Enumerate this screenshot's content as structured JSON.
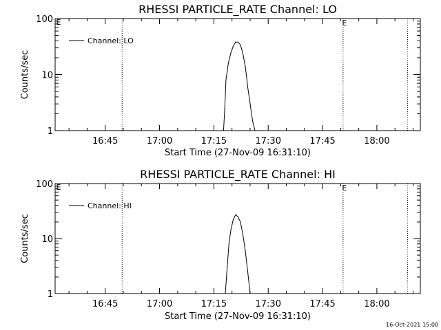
{
  "chart_data": [
    {
      "type": "line",
      "title": "RHESSI PARTICLE_RATE Channel: LO",
      "xlabel": "Start Time (27-Nov-09 16:31:10)",
      "ylabel": "Counts/sec",
      "yscale": "log",
      "ylim": [
        1,
        100
      ],
      "xlim": [
        "16:31:10",
        "18:12:00"
      ],
      "x_ticks": [
        "16:45",
        "17:00",
        "17:15",
        "17:30",
        "17:45",
        "18:00"
      ],
      "y_ticks": [
        "1",
        "10",
        "100"
      ],
      "legend": {
        "position": "top-left",
        "label": "Channel: LO"
      },
      "vlines": [
        {
          "x": "16:49:40",
          "label": ""
        },
        {
          "x": "17:50:40",
          "label": "E"
        },
        {
          "x": "18:08:30",
          "label": ""
        }
      ],
      "corner_mark": "E",
      "series": [
        {
          "name": "Channel: LO",
          "x": [
            "17:17:40",
            "17:18:00",
            "17:18:20",
            "17:19:00",
            "17:19:40",
            "17:20:20",
            "17:21:00",
            "17:21:40",
            "17:22:20",
            "17:23:00",
            "17:23:40",
            "17:24:20",
            "17:25:00",
            "17:25:40",
            "17:26:20"
          ],
          "y": [
            1,
            2.5,
            8,
            16,
            24,
            32,
            38,
            38,
            34,
            24,
            14,
            6,
            3,
            1.5,
            1
          ]
        }
      ]
    },
    {
      "type": "line",
      "title": "RHESSI PARTICLE_RATE Channel: HI",
      "xlabel": "Start Time (27-Nov-09 16:31:10)",
      "ylabel": "Counts/sec",
      "yscale": "log",
      "ylim": [
        1,
        100
      ],
      "xlim": [
        "16:31:10",
        "18:12:00"
      ],
      "x_ticks": [
        "16:45",
        "17:00",
        "17:15",
        "17:30",
        "17:45",
        "18:00"
      ],
      "y_ticks": [
        "1",
        "10",
        "100"
      ],
      "legend": {
        "position": "top-left",
        "label": "Channel: HI"
      },
      "vlines": [
        {
          "x": "16:49:40",
          "label": ""
        },
        {
          "x": "17:50:40",
          "label": "E"
        },
        {
          "x": "18:08:30",
          "label": ""
        }
      ],
      "corner_mark": "E",
      "series": [
        {
          "name": "Channel: HI",
          "x": [
            "17:18:10",
            "17:18:40",
            "17:19:10",
            "17:19:40",
            "17:20:20",
            "17:21:00",
            "17:21:40",
            "17:22:20",
            "17:23:00",
            "17:23:40",
            "17:24:20",
            "17:25:00"
          ],
          "y": [
            1,
            3,
            8,
            14,
            22,
            27,
            25,
            20,
            12,
            6,
            2.5,
            1
          ]
        }
      ]
    }
  ],
  "footer": "16-Oct-2021 15:00"
}
